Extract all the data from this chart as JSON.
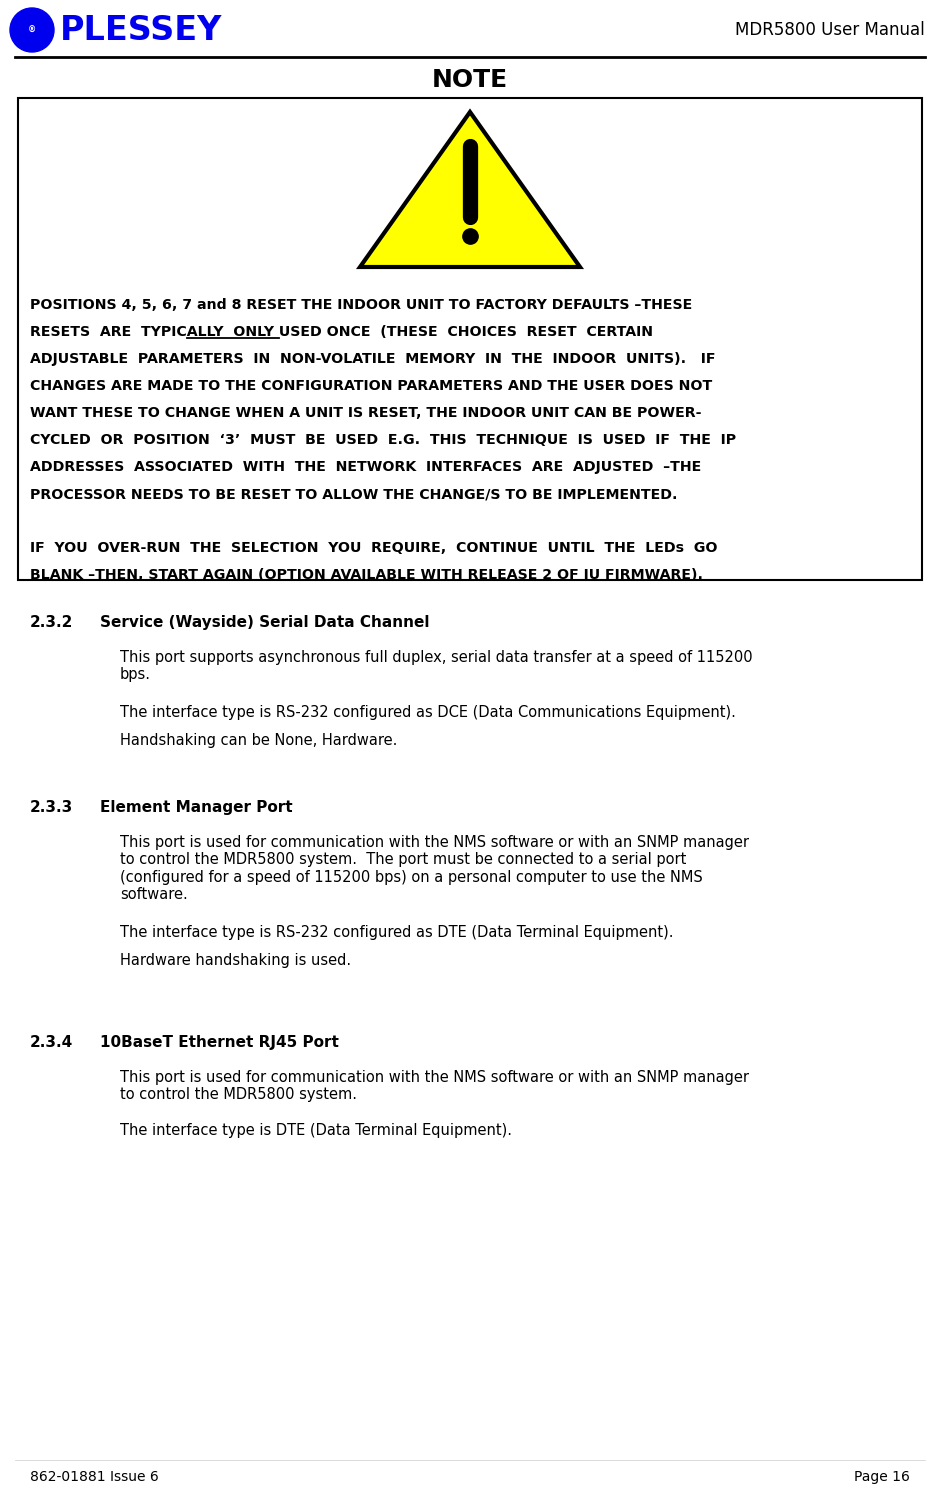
{
  "header_title": "MDR5800 User Manual",
  "note_title": "NOTE",
  "footer_left": "862-01881 Issue 6",
  "footer_right": "Page 16",
  "bg_color": "#ffffff",
  "text_color": "#000000",
  "plessey_blue": "#0000ee",
  "plessey_text": "PLESSEY",
  "section_232_heading": "2.3.2",
  "section_232_heading_text": "Service (Wayside) Serial Data Channel",
  "section_232_p1": "This port supports asynchronous full duplex, serial data transfer at a speed of 115200\nbps.",
  "section_232_p2": "The interface type is RS-232 configured as DCE (Data Communications Equipment).",
  "section_232_p3": "Handshaking can be None, Hardware.",
  "section_233_heading": "2.3.3",
  "section_233_heading_text": "Element Manager Port",
  "section_233_p1": "This port is used for communication with the NMS software or with an SNMP manager\nto control the MDR5800 system.  The port must be connected to a serial port\n(configured for a speed of 115200 bps) on a personal computer to use the NMS\nsoftware.",
  "section_233_p2": "The interface type is RS-232 configured as DTE (Data Terminal Equipment).",
  "section_233_p3": "Hardware handshaking is used.",
  "section_234_heading": "2.3.4",
  "section_234_heading_text": "10BaseT Ethernet RJ45 Port",
  "section_234_p1": "This port is used for communication with the NMS software or with an SNMP manager\nto control the MDR5800 system.",
  "section_234_p2": "The interface type is DTE (Data Terminal Equipment).",
  "note_lines": [
    "POSITIONS 4, 5, 6, 7 and 8 RESET THE INDOOR UNIT TO FACTORY DEFAULTS –THESE",
    "RESETS  ARE  TYPICALLY  ONLY USED ONCE  (THESE  CHOICES  RESET  CERTAIN",
    "ADJUSTABLE  PARAMETERS  IN  NON-VOLATILE  MEMORY  IN  THE  INDOOR  UNITS).   IF",
    "CHANGES ARE MADE TO THE CONFIGURATION PARAMETERS AND THE USER DOES NOT",
    "WANT THESE TO CHANGE WHEN A UNIT IS RESET, THE INDOOR UNIT CAN BE POWER-",
    "CYCLED  OR  POSITION  ‘3’  MUST  BE  USED  E.G.  THIS  TECHNIQUE  IS  USED  IF  THE  IP",
    "ADDRESSES  ASSOCIATED  WITH  THE  NETWORK  INTERFACES  ARE  ADJUSTED  –THE",
    "PROCESSOR NEEDS TO BE RESET TO ALLOW THE CHANGE/S TO BE IMPLEMENTED.",
    "",
    "IF  YOU  OVER-RUN  THE  SELECTION  YOU  REQUIRE,  CONTINUE  UNTIL  THE  LEDs  GO",
    "BLANK –THEN, START AGAIN (OPTION AVAILABLE WITH RELEASE 2 OF IU FIRMWARE)."
  ],
  "note_underline_line": 1,
  "note_underline_prefix": "RESETS  ARE  TYPICALLY  ",
  "note_underline_word": "ONLY USED ONCE"
}
